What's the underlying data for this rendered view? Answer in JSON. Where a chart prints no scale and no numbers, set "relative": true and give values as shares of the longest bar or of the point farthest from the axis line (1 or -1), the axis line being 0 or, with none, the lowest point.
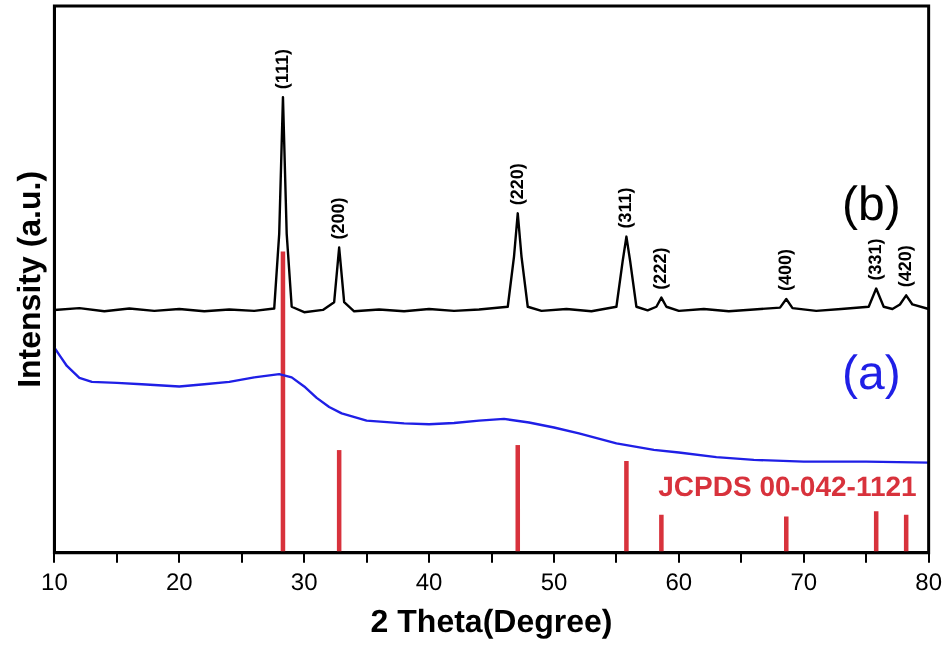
{
  "chart_data": {
    "type": "line",
    "xlabel": "2 Theta(Degree)",
    "ylabel": "Intensity (a.u.)",
    "relative": true,
    "xlim": [
      10,
      80
    ],
    "xticks": [
      10,
      {
        "value": 15,
        "label": null
      },
      20,
      {
        "value": 25,
        "label": null
      },
      30,
      {
        "value": 35,
        "label": null
      },
      40,
      {
        "value": 45,
        "label": null
      },
      50,
      {
        "value": 55,
        "label": null
      },
      60,
      {
        "value": 65,
        "label": null
      },
      70,
      {
        "value": 75,
        "label": null
      },
      80
    ],
    "tick_labels": "x",
    "grid": false,
    "legend": false,
    "marker": "none",
    "line_style": "solid",
    "series": [
      {
        "name": "(b)",
        "color": "#000000",
        "x": [
          10,
          12,
          14,
          16,
          18,
          20,
          22,
          24,
          26,
          27.6,
          28.0,
          28.3,
          28.6,
          29.0,
          30,
          31.5,
          32.4,
          32.8,
          33.2,
          34,
          36,
          38,
          40,
          42,
          44,
          46.3,
          46.8,
          47.1,
          47.4,
          47.9,
          49,
          51,
          53,
          55.0,
          55.5,
          55.8,
          56.1,
          56.6,
          57.5,
          58.2,
          58.6,
          59.0,
          60,
          62,
          64,
          66,
          68.1,
          68.6,
          69.1,
          71,
          73,
          75.2,
          75.8,
          76.4,
          77.1,
          77.7,
          78.2,
          78.7,
          80
        ],
        "values": [
          0.533,
          0.537,
          0.53,
          0.536,
          0.531,
          0.535,
          0.53,
          0.534,
          0.531,
          0.536,
          0.7,
          1.0,
          0.7,
          0.54,
          0.528,
          0.533,
          0.55,
          0.67,
          0.55,
          0.53,
          0.534,
          0.53,
          0.535,
          0.531,
          0.534,
          0.54,
          0.65,
          0.745,
          0.65,
          0.54,
          0.531,
          0.535,
          0.53,
          0.54,
          0.64,
          0.694,
          0.64,
          0.54,
          0.532,
          0.54,
          0.56,
          0.54,
          0.531,
          0.535,
          0.53,
          0.534,
          0.538,
          0.557,
          0.537,
          0.531,
          0.535,
          0.54,
          0.58,
          0.54,
          0.535,
          0.545,
          0.565,
          0.545,
          0.535
        ]
      },
      {
        "name": "(a)",
        "color": "#1f1fe6",
        "x": [
          10,
          10.5,
          11,
          12,
          13,
          15,
          17,
          20,
          22,
          24,
          26,
          28,
          29,
          30,
          31,
          32,
          33,
          35,
          38,
          40,
          42,
          44,
          46,
          48,
          50,
          52,
          55,
          58,
          60,
          63,
          66,
          70,
          75,
          80
        ],
        "values": [
          0.45,
          0.43,
          0.41,
          0.384,
          0.375,
          0.373,
          0.37,
          0.365,
          0.37,
          0.375,
          0.385,
          0.392,
          0.385,
          0.365,
          0.34,
          0.32,
          0.306,
          0.29,
          0.284,
          0.282,
          0.285,
          0.29,
          0.294,
          0.286,
          0.275,
          0.262,
          0.24,
          0.226,
          0.22,
          0.21,
          0.204,
          0.2,
          0.2,
          0.198
        ]
      },
      {
        "name": "JCPDS 00-042-1121",
        "type": "bar",
        "color": "#d8323c",
        "x": [
          28.3,
          32.8,
          47.1,
          55.8,
          58.6,
          68.6,
          75.8,
          78.2
        ],
        "values": [
          0.66,
          0.224,
          0.235,
          0.2,
          0.082,
          0.078,
          0.09,
          0.082
        ]
      }
    ],
    "annotations": [
      {
        "text": "(111)",
        "x": 28.3,
        "y": 1.0
      },
      {
        "text": "(200)",
        "x": 32.8,
        "y": 0.67
      },
      {
        "text": "(220)",
        "x": 47.1,
        "y": 0.745
      },
      {
        "text": "(311)",
        "x": 55.8,
        "y": 0.694
      },
      {
        "text": "(222)",
        "x": 58.6,
        "y": 0.56
      },
      {
        "text": "(400)",
        "x": 68.6,
        "y": 0.557
      },
      {
        "text": "(331)",
        "x": 75.8,
        "y": 0.58
      },
      {
        "text": "(420)",
        "x": 78.2,
        "y": 0.565
      }
    ]
  }
}
